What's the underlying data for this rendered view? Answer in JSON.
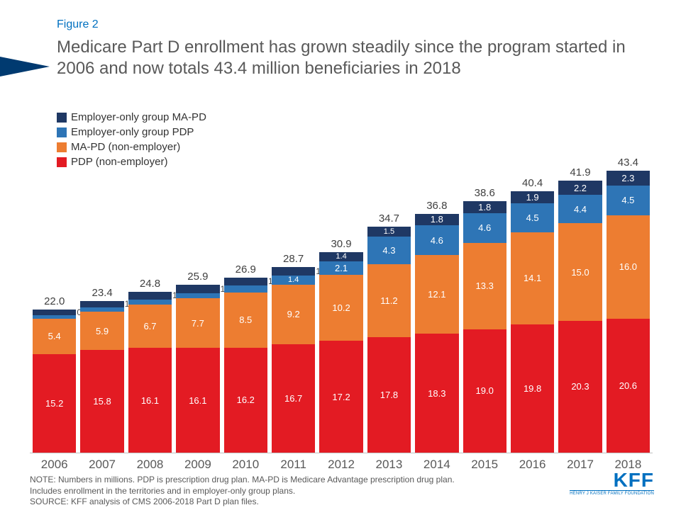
{
  "figure_label": "Figure 2",
  "title": "Medicare Part D enrollment has grown steadily since the program started in 2006 and now totals 43.4 million beneficiaries in 2018",
  "legend": {
    "items": [
      {
        "label": "Employer-only group MA-PD",
        "color": "#1f3864"
      },
      {
        "label": "Employer-only group PDP",
        "color": "#2e75b6"
      },
      {
        "label": "MA-PD (non-employer)",
        "color": "#ed7d31"
      },
      {
        "label": "PDP (non-employer)",
        "color": "#e31b23"
      }
    ]
  },
  "chart": {
    "type": "stacked-bar",
    "ylim_max": 48,
    "background_color": "#ffffff",
    "text_color_on_bar": "#ffffff",
    "segment_order_bottom_to_top": [
      "pdp",
      "mapd",
      "emp_pdp",
      "emp_mapd"
    ],
    "colors": {
      "pdp": "#e31b23",
      "mapd": "#ed7d31",
      "emp_pdp": "#2e75b6",
      "emp_mapd": "#1f3864"
    },
    "years": [
      "2006",
      "2007",
      "2008",
      "2009",
      "2010",
      "2011",
      "2012",
      "2013",
      "2014",
      "2015",
      "2016",
      "2017",
      "2018"
    ],
    "data": [
      {
        "total": "22.0",
        "pdp": 15.2,
        "mapd": 5.4,
        "emp_pdp": 0.6,
        "emp_mapd": 0.8,
        "show_emp_mapd_beside": true
      },
      {
        "total": "23.4",
        "pdp": 15.8,
        "mapd": 5.9,
        "emp_pdp": 0.7,
        "emp_mapd": 1.0,
        "show_emp_mapd_beside": true
      },
      {
        "total": "24.8",
        "pdp": 16.1,
        "mapd": 6.7,
        "emp_pdp": 0.8,
        "emp_mapd": 1.2,
        "show_emp_mapd_beside": true
      },
      {
        "total": "25.9",
        "pdp": 16.1,
        "mapd": 7.7,
        "emp_pdp": 0.8,
        "emp_mapd": 1.3,
        "show_emp_mapd_beside": true
      },
      {
        "total": "26.9",
        "pdp": 16.2,
        "mapd": 8.5,
        "emp_pdp": 1.0,
        "emp_mapd": 1.3,
        "show_emp_mapd_beside": true
      },
      {
        "total": "28.7",
        "pdp": 16.7,
        "mapd": 9.2,
        "emp_pdp": 1.4,
        "emp_mapd": 1.3,
        "show_emp_mapd_beside": true
      },
      {
        "total": "30.9",
        "pdp": 17.2,
        "mapd": 10.2,
        "emp_pdp": 2.1,
        "emp_mapd": 1.4,
        "show_emp_mapd_beside": false
      },
      {
        "total": "34.7",
        "pdp": 17.8,
        "mapd": 11.2,
        "emp_pdp": 4.3,
        "emp_mapd": 1.5,
        "show_emp_mapd_beside": false
      },
      {
        "total": "36.8",
        "pdp": 18.3,
        "mapd": 12.1,
        "emp_pdp": 4.6,
        "emp_mapd": 1.8,
        "show_emp_mapd_beside": false
      },
      {
        "total": "38.6",
        "pdp": 19.0,
        "mapd": 13.3,
        "emp_pdp": 4.6,
        "emp_mapd": 1.8,
        "show_emp_mapd_beside": false
      },
      {
        "total": "40.4",
        "pdp": 19.8,
        "mapd": 14.1,
        "emp_pdp": 4.5,
        "emp_mapd": 1.9,
        "show_emp_mapd_beside": false
      },
      {
        "total": "41.9",
        "pdp": 20.3,
        "mapd": 15.0,
        "emp_pdp": 4.4,
        "emp_mapd": 2.2,
        "show_emp_mapd_beside": false
      },
      {
        "total": "43.4",
        "pdp": 20.6,
        "mapd": 16.0,
        "emp_pdp": 4.5,
        "emp_mapd": 2.3,
        "show_emp_mapd_beside": false
      }
    ]
  },
  "note": {
    "line1": "NOTE: Numbers in millions. PDP is prescription drug plan. MA-PD is Medicare Advantage prescription drug plan.",
    "line2": "Includes enrollment in the territories and in employer-only group plans.",
    "line3": "SOURCE: KFF analysis of CMS 2006-2018 Part D plan files."
  },
  "logo": {
    "big": "KFF",
    "small": "HENRY J KAISER FAMILY FOUNDATION"
  }
}
